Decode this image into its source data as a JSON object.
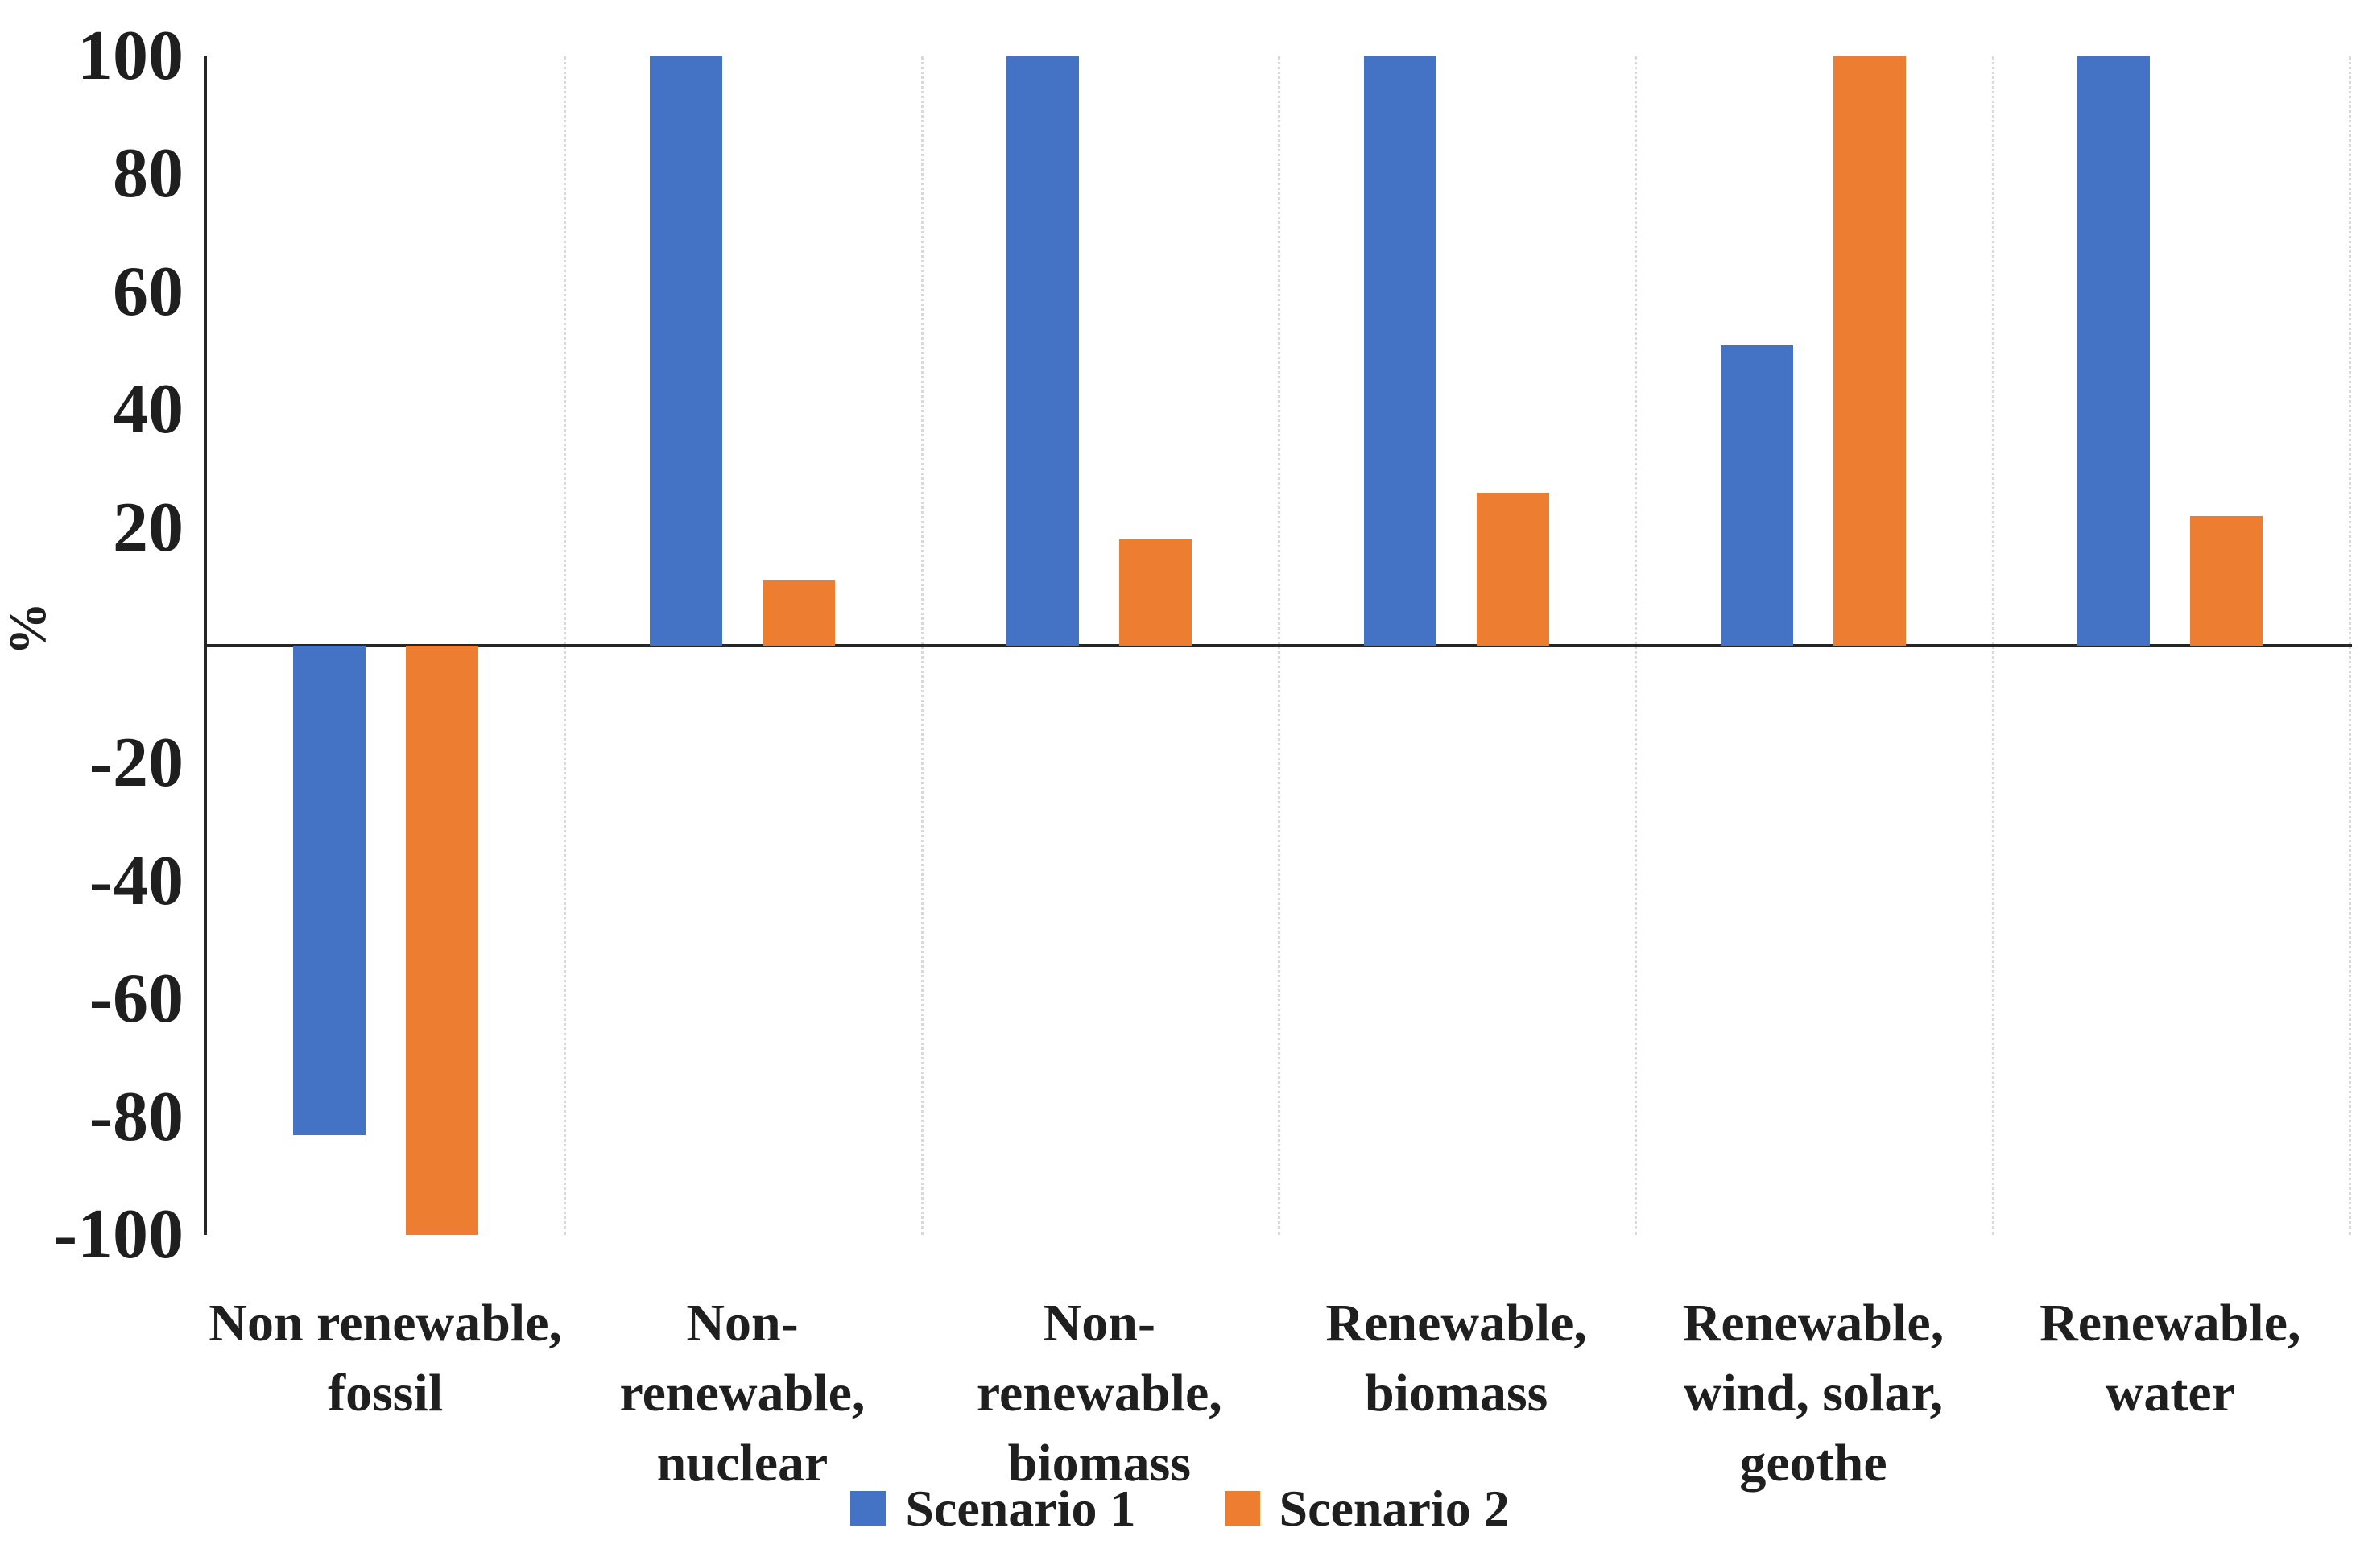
{
  "chart_data": {
    "type": "bar",
    "title": "",
    "xlabel": "",
    "ylabel": "%",
    "ylim": [
      -100,
      100
    ],
    "yticks": [
      100,
      80,
      60,
      40,
      20,
      -20,
      -40,
      -60,
      -80,
      -100
    ],
    "grid": "vertical category separators, dotted light gray",
    "legend_position": "bottom-center",
    "categories": [
      "Non renewable,\nfossil",
      "Non-renewable,\nnuclear",
      "Non-renewable,\nbiomass",
      "Renewable,\nbiomass",
      "Renewable,\nwind, solar,\ngeothe",
      "Renewable,\nwater"
    ],
    "series": [
      {
        "name": "Scenario 1",
        "color": "#4472C4",
        "values": [
          -83,
          100,
          100,
          100,
          51,
          100
        ]
      },
      {
        "name": "Scenario 2",
        "color": "#ED7D31",
        "values": [
          -100,
          11,
          18,
          26,
          100,
          22
        ]
      }
    ]
  }
}
